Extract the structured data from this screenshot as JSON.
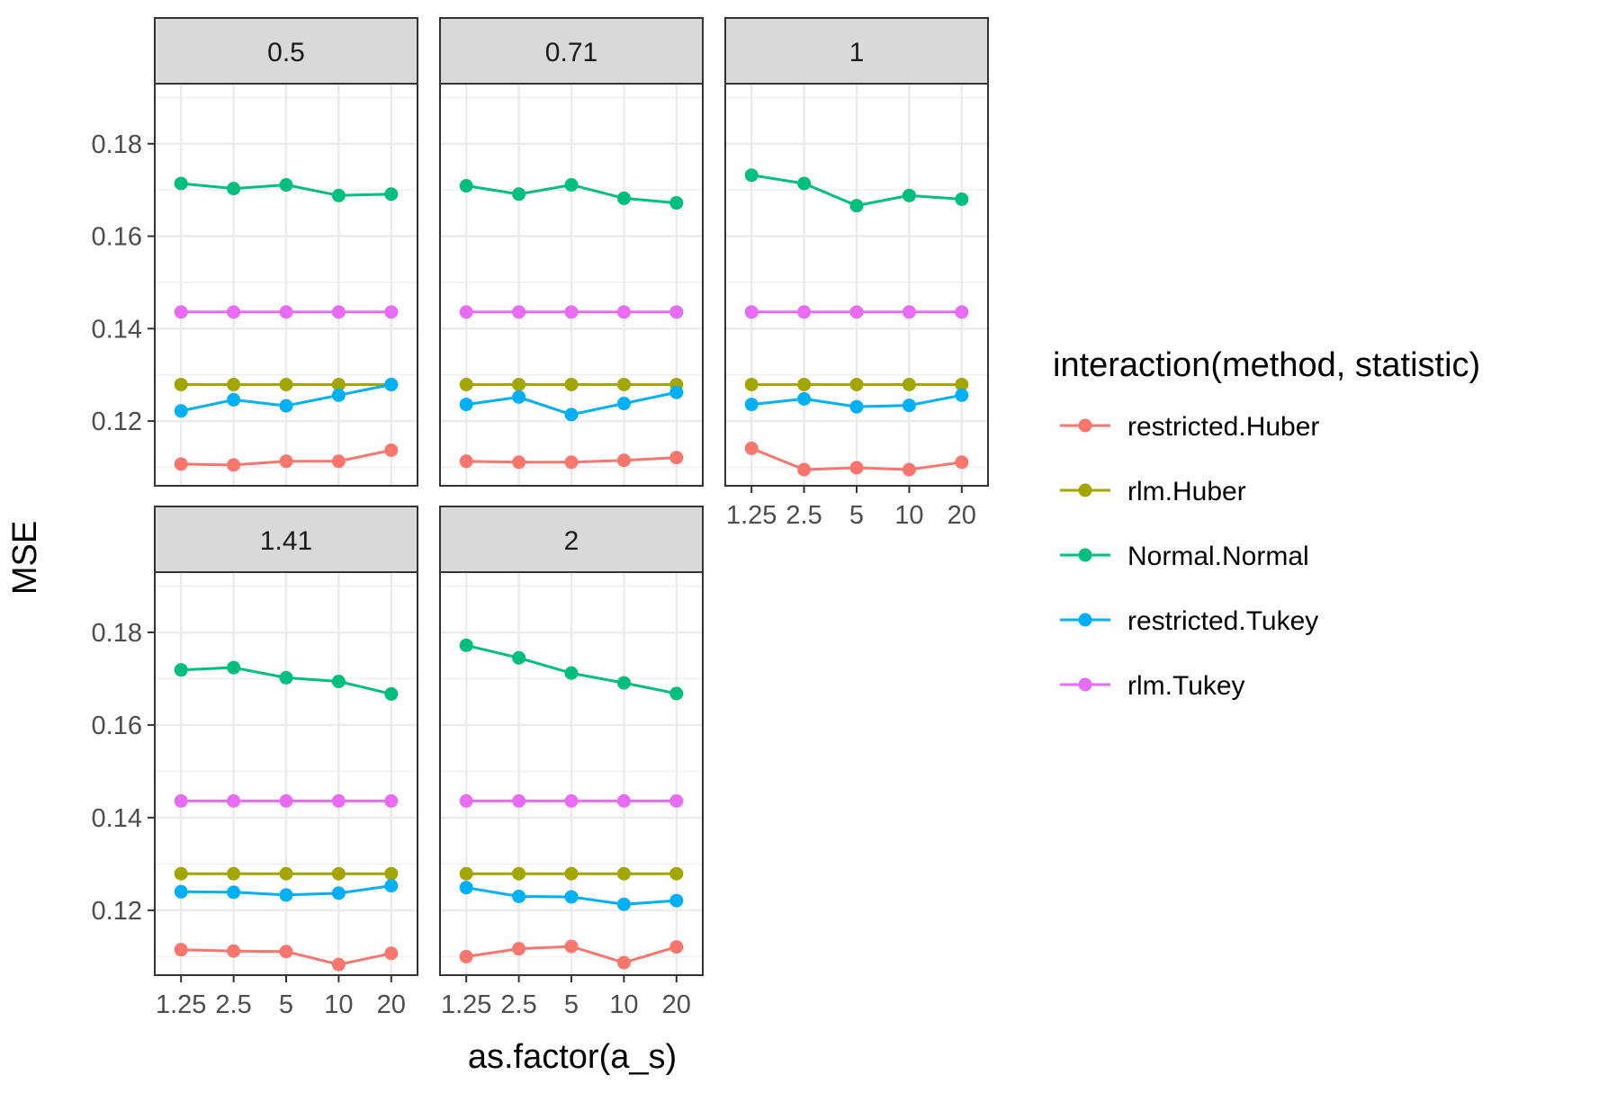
{
  "chart_data": {
    "type": "line",
    "xlabel": "as.factor(a_s)",
    "ylabel": "MSE",
    "categories": [
      "1.25",
      "2.5",
      "5",
      "10",
      "20"
    ],
    "ylim": [
      0.106,
      0.193
    ],
    "yticks": [
      0.12,
      0.14,
      0.16,
      0.18
    ],
    "ytick_labels": [
      "0.12",
      "0.14",
      "0.16",
      "0.18"
    ],
    "grid": true,
    "legend": {
      "title": "interaction(method, statistic)",
      "placement": "right",
      "entries": [
        "restricted.Huber",
        "rlm.Huber",
        "Normal.Normal",
        "restricted.Tukey",
        "rlm.Tukey"
      ]
    },
    "colors": {
      "restricted.Huber": "#F8766D",
      "rlm.Huber": "#A3A500",
      "Normal.Normal": "#00BF7D",
      "restricted.Tukey": "#00B0F6",
      "rlm.Tukey": "#E76BF3"
    },
    "panels": [
      {
        "label": "0.5",
        "series": [
          {
            "name": "restricted.Huber",
            "values": [
              0.1107,
              0.1105,
              0.1113,
              0.1113,
              0.1137
            ]
          },
          {
            "name": "rlm.Huber",
            "values": [
              0.1279,
              0.1279,
              0.1279,
              0.1279,
              0.1279
            ]
          },
          {
            "name": "Normal.Normal",
            "values": [
              0.1714,
              0.1703,
              0.1711,
              0.1688,
              0.1691
            ]
          },
          {
            "name": "restricted.Tukey",
            "values": [
              0.1222,
              0.1246,
              0.1233,
              0.1256,
              0.1279
            ]
          },
          {
            "name": "rlm.Tukey",
            "values": [
              0.1436,
              0.1436,
              0.1436,
              0.1436,
              0.1436
            ]
          }
        ]
      },
      {
        "label": "0.71",
        "series": [
          {
            "name": "restricted.Huber",
            "values": [
              0.1113,
              0.1111,
              0.1111,
              0.1115,
              0.1121
            ]
          },
          {
            "name": "rlm.Huber",
            "values": [
              0.1279,
              0.1279,
              0.1279,
              0.1279,
              0.1279
            ]
          },
          {
            "name": "Normal.Normal",
            "values": [
              0.1709,
              0.1691,
              0.1711,
              0.1682,
              0.1672
            ]
          },
          {
            "name": "restricted.Tukey",
            "values": [
              0.1236,
              0.1252,
              0.1214,
              0.1238,
              0.1262
            ]
          },
          {
            "name": "rlm.Tukey",
            "values": [
              0.1436,
              0.1436,
              0.1436,
              0.1436,
              0.1436
            ]
          }
        ]
      },
      {
        "label": "1",
        "series": [
          {
            "name": "restricted.Huber",
            "values": [
              0.1141,
              0.1095,
              0.1099,
              0.1095,
              0.1111
            ]
          },
          {
            "name": "rlm.Huber",
            "values": [
              0.1279,
              0.1279,
              0.1279,
              0.1279,
              0.1279
            ]
          },
          {
            "name": "Normal.Normal",
            "values": [
              0.1732,
              0.1714,
              0.1666,
              0.1688,
              0.168
            ]
          },
          {
            "name": "restricted.Tukey",
            "values": [
              0.1236,
              0.1248,
              0.1231,
              0.1234,
              0.1256
            ]
          },
          {
            "name": "rlm.Tukey",
            "values": [
              0.1436,
              0.1436,
              0.1436,
              0.1436,
              0.1436
            ]
          }
        ]
      },
      {
        "label": "1.41",
        "series": [
          {
            "name": "restricted.Huber",
            "values": [
              0.1115,
              0.1112,
              0.1111,
              0.1083,
              0.1107
            ]
          },
          {
            "name": "rlm.Huber",
            "values": [
              0.1279,
              0.1279,
              0.1279,
              0.1279,
              0.1279
            ]
          },
          {
            "name": "Normal.Normal",
            "values": [
              0.1719,
              0.1724,
              0.1702,
              0.1694,
              0.1667
            ]
          },
          {
            "name": "restricted.Tukey",
            "values": [
              0.124,
              0.1239,
              0.1233,
              0.1237,
              0.1253
            ]
          },
          {
            "name": "rlm.Tukey",
            "values": [
              0.1436,
              0.1436,
              0.1436,
              0.1436,
              0.1436
            ]
          }
        ]
      },
      {
        "label": "2",
        "series": [
          {
            "name": "restricted.Huber",
            "values": [
              0.11,
              0.1117,
              0.1122,
              0.1087,
              0.1121
            ]
          },
          {
            "name": "rlm.Huber",
            "values": [
              0.1279,
              0.1279,
              0.1279,
              0.1279,
              0.1279
            ]
          },
          {
            "name": "Normal.Normal",
            "values": [
              0.1772,
              0.1745,
              0.1712,
              0.1691,
              0.1668
            ]
          },
          {
            "name": "restricted.Tukey",
            "values": [
              0.1249,
              0.123,
              0.1229,
              0.1213,
              0.1221
            ]
          },
          {
            "name": "rlm.Tukey",
            "values": [
              0.1436,
              0.1436,
              0.1436,
              0.1436,
              0.1436
            ]
          }
        ]
      }
    ]
  }
}
